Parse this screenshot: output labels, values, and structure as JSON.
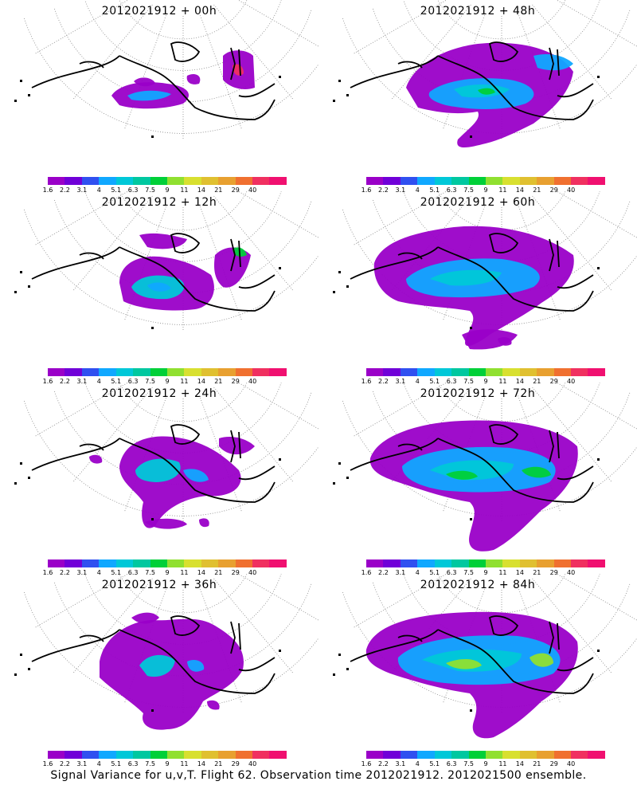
{
  "panels": [
    {
      "title": "2012021912 + 00h",
      "lead": 0
    },
    {
      "title": "2012021912 + 48h",
      "lead": 48
    },
    {
      "title": "2012021912 + 12h",
      "lead": 12
    },
    {
      "title": "2012021912 + 60h",
      "lead": 60
    },
    {
      "title": "2012021912 + 24h",
      "lead": 24
    },
    {
      "title": "2012021912 + 72h",
      "lead": 72
    },
    {
      "title": "2012021912 + 36h",
      "lead": 36
    },
    {
      "title": "2012021912 + 84h",
      "lead": 84
    }
  ],
  "colorbar": {
    "labels": [
      "1.6",
      "2.2",
      "3.1",
      "4",
      "5.1",
      "6.3",
      "7.5",
      "9",
      "11",
      "14",
      "21",
      "29",
      "40"
    ],
    "colors": [
      "#9a00c8",
      "#7000d8",
      "#3050f0",
      "#10a8ff",
      "#00c8d8",
      "#00c8a0",
      "#00d038",
      "#90e030",
      "#d8e030",
      "#e0c030",
      "#e8a030",
      "#f07030",
      "#f03060",
      "#f01070"
    ]
  },
  "footer": "Signal Variance for u,v,T. Flight 62. Observation time 2012021912. 2012021500 ensemble."
}
